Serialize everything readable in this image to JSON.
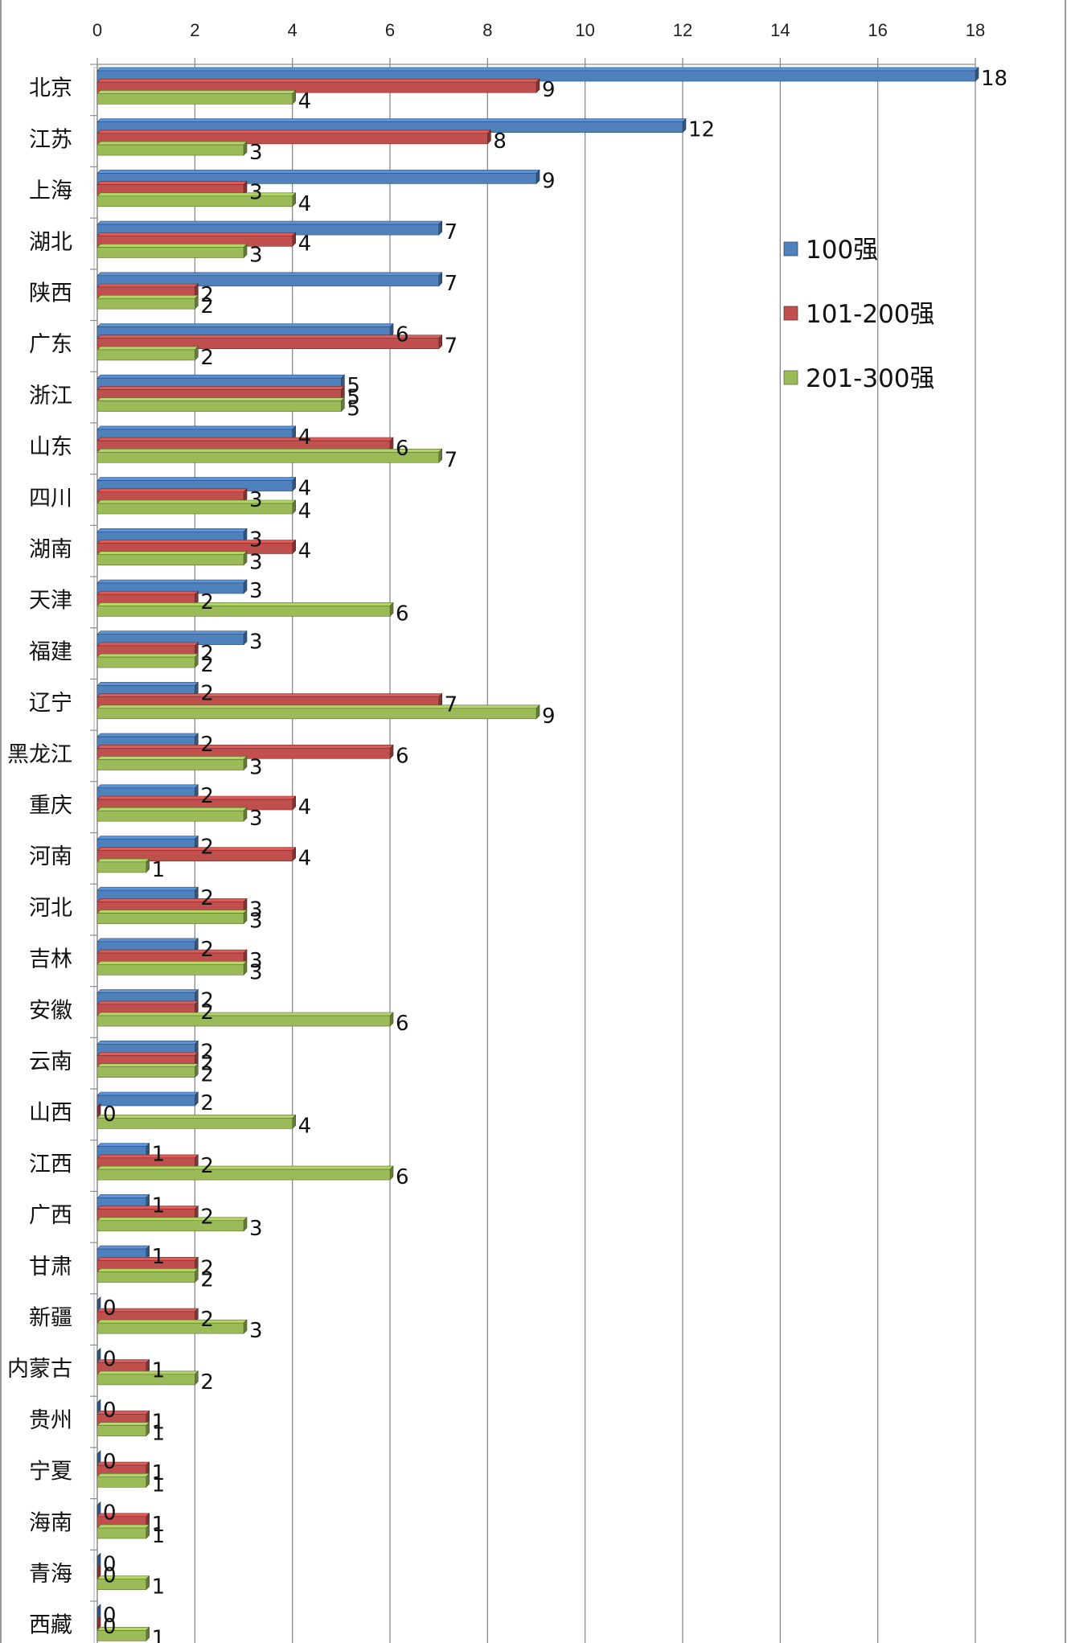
{
  "chart_data": {
    "type": "bar",
    "orientation": "horizontal",
    "title": "",
    "xlabel": "",
    "ylabel": "",
    "xlim": [
      0,
      18
    ],
    "x_ticks": [
      0,
      2,
      4,
      6,
      8,
      10,
      12,
      14,
      16,
      18
    ],
    "grid": true,
    "legend_position": "right",
    "categories": [
      "北京",
      "江苏",
      "上海",
      "湖北",
      "陕西",
      "广东",
      "浙江",
      "山东",
      "四川",
      "湖南",
      "天津",
      "福建",
      "辽宁",
      "黑龙江",
      "重庆",
      "河南",
      "河北",
      "吉林",
      "安徽",
      "云南",
      "山西",
      "江西",
      "广西",
      "甘肃",
      "新疆",
      "内蒙古",
      "贵州",
      "宁夏",
      "海南",
      "青海",
      "西藏"
    ],
    "series": [
      {
        "name": "100强",
        "color": "#4F81BD",
        "values": [
          18,
          12,
          9,
          7,
          7,
          6,
          5,
          4,
          4,
          3,
          3,
          3,
          2,
          2,
          2,
          2,
          2,
          2,
          2,
          2,
          2,
          1,
          1,
          1,
          0,
          0,
          0,
          0,
          0,
          0,
          0
        ]
      },
      {
        "name": "101-200强",
        "color": "#C0504D",
        "values": [
          9,
          8,
          3,
          4,
          2,
          7,
          5,
          6,
          3,
          4,
          2,
          2,
          7,
          6,
          4,
          4,
          3,
          3,
          2,
          2,
          0,
          2,
          2,
          2,
          2,
          1,
          1,
          1,
          1,
          0,
          0
        ]
      },
      {
        "name": "201-300强",
        "color": "#9BBB59",
        "values": [
          4,
          3,
          4,
          3,
          2,
          2,
          5,
          7,
          4,
          3,
          6,
          2,
          9,
          3,
          3,
          1,
          3,
          3,
          6,
          2,
          4,
          6,
          3,
          2,
          3,
          2,
          1,
          1,
          1,
          1,
          1
        ]
      }
    ]
  }
}
